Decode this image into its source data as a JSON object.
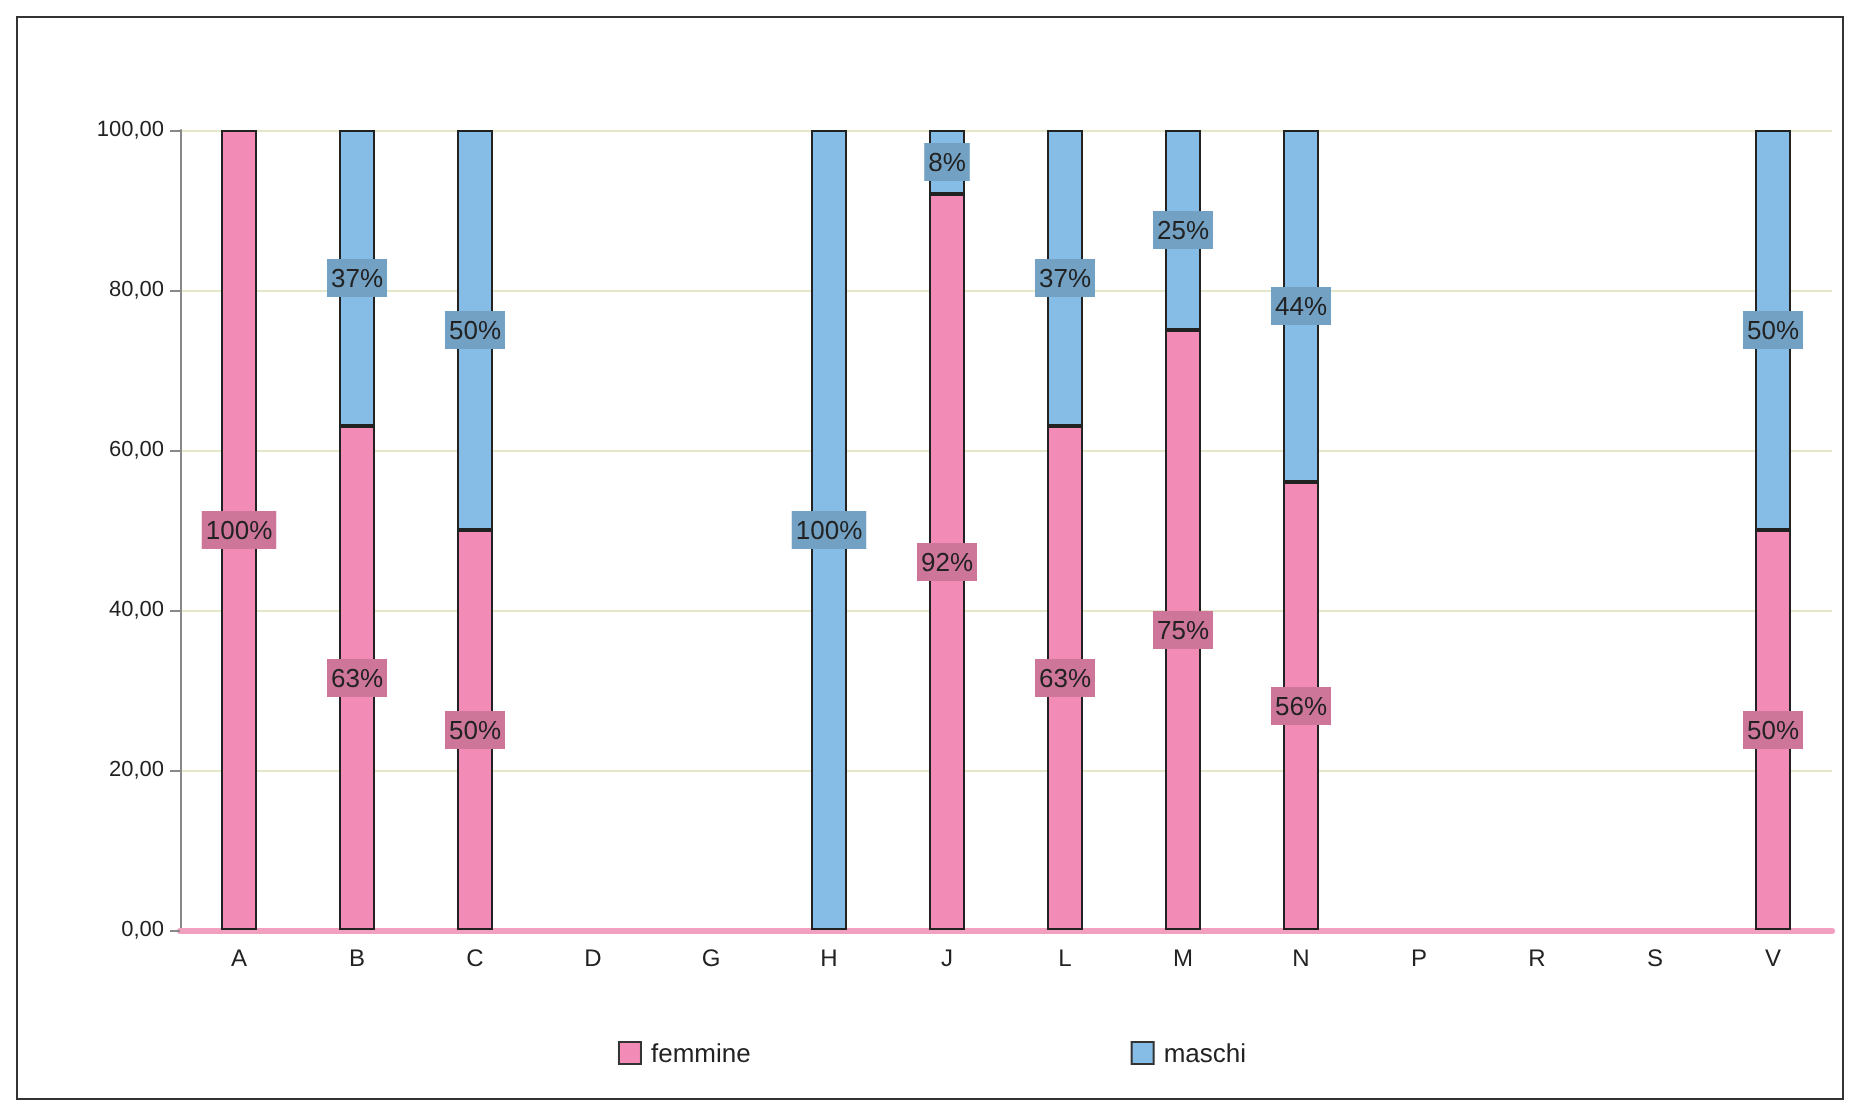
{
  "chart_data": {
    "type": "bar",
    "stacked": true,
    "categories": [
      "A",
      "B",
      "C",
      "D",
      "G",
      "H",
      "J",
      "L",
      "M",
      "N",
      "P",
      "R",
      "S",
      "V"
    ],
    "series": [
      {
        "name": "femmine",
        "color": "#f28bb5",
        "values": [
          100,
          63,
          50,
          0,
          0,
          0,
          92,
          63,
          75,
          56,
          0,
          0,
          0,
          50
        ],
        "value_labels": [
          "100%",
          "63%",
          "50%",
          null,
          null,
          null,
          "92%",
          "63%",
          "75%",
          "56%",
          null,
          null,
          null,
          "50%"
        ]
      },
      {
        "name": "maschi",
        "color": "#86bde6",
        "values": [
          0,
          37,
          50,
          0,
          0,
          100,
          8,
          37,
          25,
          44,
          0,
          0,
          0,
          50
        ],
        "value_labels": [
          null,
          "37%",
          "50%",
          null,
          null,
          "100%",
          "8%",
          "37%",
          "25%",
          "44%",
          null,
          null,
          null,
          "50%"
        ]
      }
    ],
    "ylim": [
      0,
      100
    ],
    "yticks": [
      {
        "value": 0,
        "label": "0,00"
      },
      {
        "value": 20,
        "label": "20,00"
      },
      {
        "value": 40,
        "label": "40,00"
      },
      {
        "value": 60,
        "label": "60,00"
      },
      {
        "value": 80,
        "label": "80,00"
      },
      {
        "value": 100,
        "label": "100,00"
      }
    ],
    "grid": "y",
    "legend": "bottom"
  }
}
